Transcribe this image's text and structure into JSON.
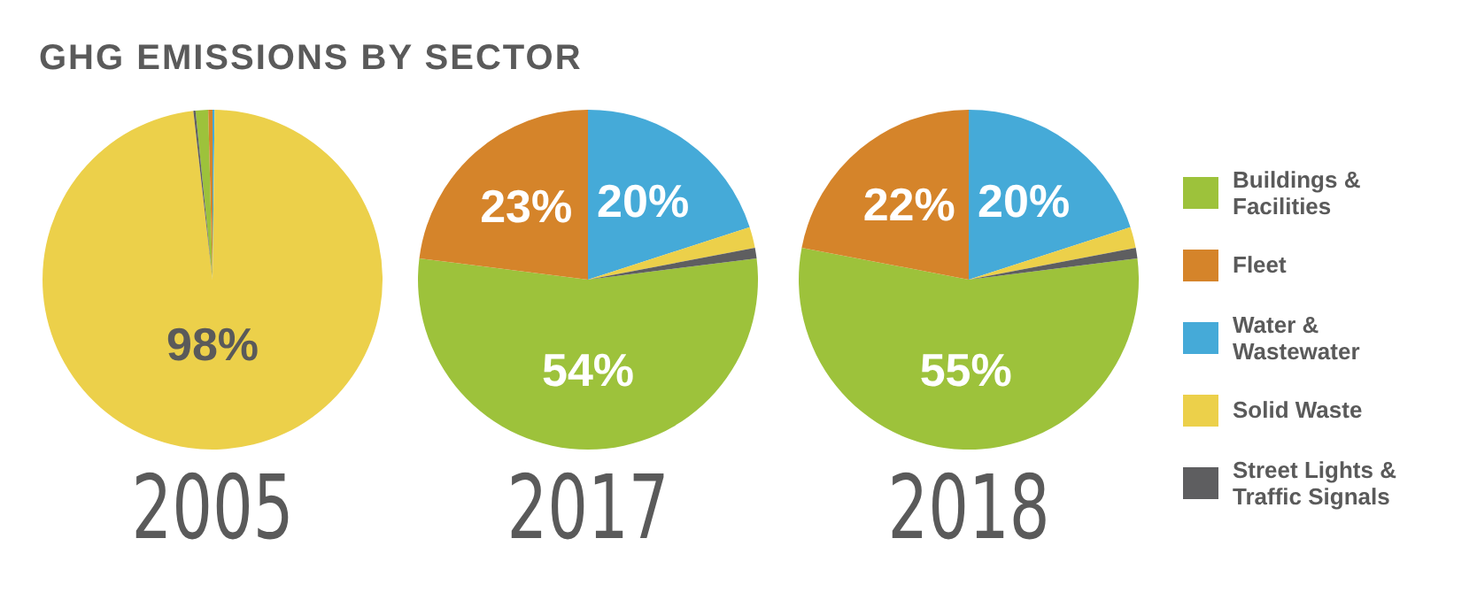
{
  "chart_data": [
    {
      "type": "pie",
      "title": "GHG EMISSIONS BY SECTOR",
      "xlabel": "2005",
      "categories": [
        null,
        null,
        null,
        null,
        null
      ],
      "values": [
        1.2,
        0.4,
        0.2,
        98,
        0.2
      ],
      "colors": [
        "#9dc23b",
        "#d5842a",
        "#45aad8",
        "#ecd04a",
        "#5e5e60"
      ],
      "value_labels": [
        null,
        null,
        null,
        "98%",
        null
      ]
    },
    {
      "type": "pie",
      "xlabel": "2017",
      "categories": [
        null,
        null,
        null,
        null,
        null
      ],
      "values": [
        54,
        23,
        20,
        2,
        1
      ],
      "colors": [
        "#9dc23b",
        "#d5842a",
        "#45aad8",
        "#ecd04a",
        "#5e5e60"
      ],
      "value_labels": [
        "54%",
        "23%",
        "20%",
        null,
        null
      ]
    },
    {
      "type": "pie",
      "xlabel": "2018",
      "categories": [
        "Buildings & Facilities",
        "Fleet",
        "Water & Wastewater",
        "Solid Waste",
        "Street Lights & Traffic Signals"
      ],
      "values": [
        55,
        22,
        20,
        2,
        1
      ],
      "colors": [
        "#9dc23b",
        "#d5842a",
        "#45aad8",
        "#ecd04a",
        "#5e5e60"
      ],
      "value_labels": [
        "55%",
        "22%",
        "20%",
        null,
        null
      ],
      "legend": "right"
    }
  ]
}
